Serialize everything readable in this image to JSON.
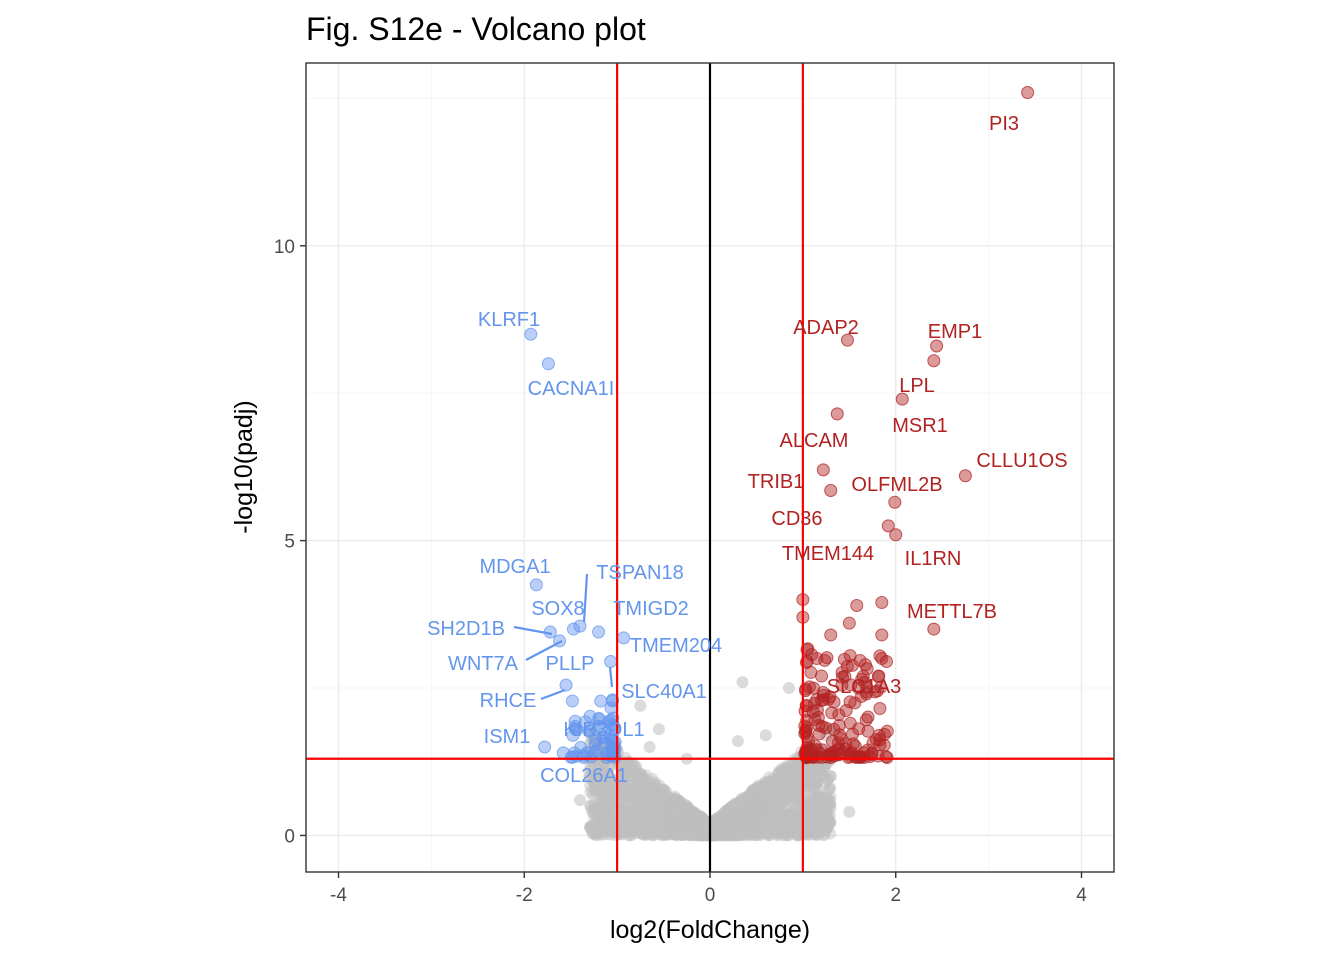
{
  "chart_data": {
    "type": "scatter",
    "title": "Fig. S12e - Volcano plot",
    "xlabel": "log2(FoldChange)",
    "ylabel": "-log10(padj)",
    "xlim": [
      -4.35,
      4.35
    ],
    "ylim": [
      -0.62,
      13.1
    ],
    "x_ticks": [
      -4,
      -2,
      0,
      2,
      4
    ],
    "x_tick_labels": [
      "-4",
      "-2",
      "0",
      "2",
      "4"
    ],
    "y_ticks": [
      0,
      5,
      10
    ],
    "y_tick_labels": [
      "0",
      "5",
      "10"
    ],
    "grid": true,
    "legend": "none",
    "colors": {
      "up": "#b22222",
      "down": "#6495ed",
      "ns": "#bebebe",
      "threshold": "#ff0000",
      "zero_line": "#000000"
    },
    "thresholds": {
      "log2fc": [
        -1,
        1
      ],
      "neg_log10_padj": 1.3
    },
    "labeled_genes": [
      {
        "gene": "PI3",
        "x": 3.42,
        "y": 12.6,
        "group": "up"
      },
      {
        "gene": "ADAP2",
        "x": 1.48,
        "y": 8.4,
        "group": "up"
      },
      {
        "gene": "EMP1",
        "x": 2.44,
        "y": 8.3,
        "group": "up"
      },
      {
        "gene": "LPL",
        "x": 2.07,
        "y": 7.4,
        "group": "up"
      },
      {
        "gene": "MSR1",
        "x": 2.41,
        "y": 8.05,
        "group": "up"
      },
      {
        "gene": "ALCAM",
        "x": 1.37,
        "y": 7.15,
        "group": "up"
      },
      {
        "gene": "CLLU1OS",
        "x": 2.75,
        "y": 6.1,
        "group": "up"
      },
      {
        "gene": "TRIB1",
        "x": 1.22,
        "y": 6.2,
        "group": "up"
      },
      {
        "gene": "OLFML2B",
        "x": 1.99,
        "y": 5.65,
        "group": "up"
      },
      {
        "gene": "CD36",
        "x": 1.3,
        "y": 5.85,
        "group": "up"
      },
      {
        "gene": "TMEM144",
        "x": 1.92,
        "y": 5.25,
        "group": "up"
      },
      {
        "gene": "IL1RN",
        "x": 2.0,
        "y": 5.1,
        "group": "up"
      },
      {
        "gene": "METTL7B",
        "x": 2.41,
        "y": 3.5,
        "group": "up"
      },
      {
        "gene": "SLC1A3",
        "x": 1.42,
        "y": 2.55,
        "group": "up"
      },
      {
        "gene": "KLRF1",
        "x": -1.93,
        "y": 8.5,
        "group": "down"
      },
      {
        "gene": "CACNA1I",
        "x": -1.74,
        "y": 8.0,
        "group": "down"
      },
      {
        "gene": "MDGA1",
        "x": -1.87,
        "y": 4.25,
        "group": "down"
      },
      {
        "gene": "TSPAN18",
        "x": -1.4,
        "y": 3.55,
        "group": "down"
      },
      {
        "gene": "SOX8",
        "x": -1.47,
        "y": 3.5,
        "group": "down"
      },
      {
        "gene": "TMIGD2",
        "x": -1.2,
        "y": 3.45,
        "group": "down"
      },
      {
        "gene": "SH2D1B",
        "x": -1.72,
        "y": 3.45,
        "group": "down"
      },
      {
        "gene": "TMEM204",
        "x": -0.93,
        "y": 3.35,
        "group": "down"
      },
      {
        "gene": "WNT7A",
        "x": -1.62,
        "y": 3.3,
        "group": "down"
      },
      {
        "gene": "PLLP",
        "x": -1.07,
        "y": 2.95,
        "group": "down"
      },
      {
        "gene": "RHCE",
        "x": -1.55,
        "y": 2.55,
        "group": "down"
      },
      {
        "gene": "SLC40A1",
        "x": -1.05,
        "y": 2.3,
        "group": "down"
      },
      {
        "gene": "KIR3DL1",
        "x": -1.2,
        "y": 1.85,
        "group": "down"
      },
      {
        "gene": "ISM1",
        "x": -1.78,
        "y": 1.5,
        "group": "down"
      },
      {
        "gene": "COL26A1",
        "x": -1.58,
        "y": 1.4,
        "group": "down"
      }
    ]
  }
}
